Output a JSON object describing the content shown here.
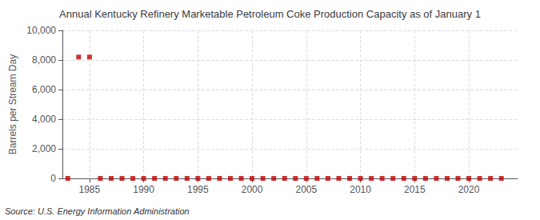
{
  "chart_data": {
    "type": "scatter",
    "title": "Annual Kentucky Refinery Marketable Petroleum Coke Production Capacity as of January 1",
    "y_label": "Barrels per Stream Day",
    "source": "Source: U.S. Energy Information Administration",
    "x": [
      1983,
      1984,
      1985,
      1986,
      1987,
      1988,
      1989,
      1990,
      1991,
      1992,
      1993,
      1994,
      1995,
      1996,
      1997,
      1998,
      1999,
      2000,
      2001,
      2002,
      2003,
      2004,
      2005,
      2006,
      2007,
      2008,
      2009,
      2010,
      2011,
      2012,
      2013,
      2014,
      2015,
      2016,
      2017,
      2018,
      2019,
      2020,
      2021,
      2022,
      2023
    ],
    "values": [
      0,
      8200,
      8200,
      0,
      0,
      0,
      0,
      0,
      0,
      0,
      0,
      0,
      0,
      0,
      0,
      0,
      0,
      0,
      0,
      0,
      0,
      0,
      0,
      0,
      0,
      0,
      0,
      0,
      0,
      0,
      0,
      0,
      0,
      0,
      0,
      0,
      0,
      0,
      0,
      0,
      0
    ],
    "color": "#c00000",
    "marker": "square",
    "xlim": [
      1982.5,
      2024.5
    ],
    "xticks": [
      1985,
      1990,
      1995,
      2000,
      2005,
      2010,
      2015,
      2020
    ],
    "ylim": [
      0,
      10000
    ],
    "yticks": [
      0,
      {
        "value": 2000,
        "label": "2,000"
      },
      {
        "value": 4000,
        "label": "4,000"
      },
      {
        "value": 6000,
        "label": "6,000"
      },
      {
        "value": 8000,
        "label": "8,000"
      },
      {
        "value": 10000,
        "label": "10,000"
      }
    ],
    "grid": true
  }
}
